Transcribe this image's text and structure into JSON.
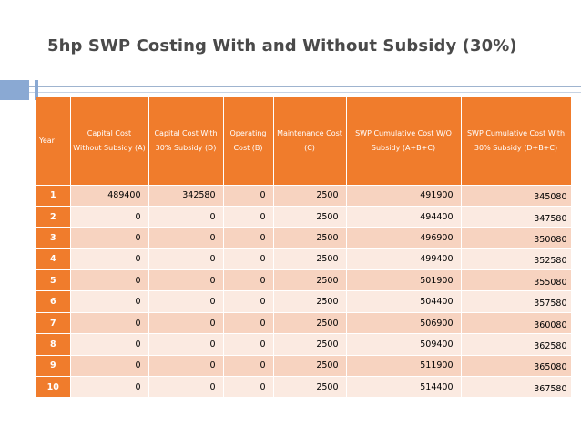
{
  "slide": {
    "title": "5hp SWP Costing With and Without Subsidy (30%)"
  },
  "colors": {
    "header_bg": "#f07c2c",
    "row_odd_bg": "#f7d3c0",
    "row_even_bg": "#fbeae1",
    "accent_blue": "#8aa9d3"
  },
  "table": {
    "headers": [
      "Year",
      "Capital Cost Without Subsidy (A)",
      "Capital Cost With 30% Subsidy (D)",
      "Operating Cost (B)",
      "Maintenance Cost (C)",
      "SWP Cumulative Cost W/O Subsidy (A+B+C)",
      "SWP Cumulative Cost With 30% Subsidy (D+B+C)"
    ],
    "rows": [
      [
        "1",
        "489400",
        "342580",
        "0",
        "2500",
        "491900",
        "345080"
      ],
      [
        "2",
        "0",
        "0",
        "0",
        "2500",
        "494400",
        "347580"
      ],
      [
        "3",
        "0",
        "0",
        "0",
        "2500",
        "496900",
        "350080"
      ],
      [
        "4",
        "0",
        "0",
        "0",
        "2500",
        "499400",
        "352580"
      ],
      [
        "5",
        "0",
        "0",
        "0",
        "2500",
        "501900",
        "355080"
      ],
      [
        "6",
        "0",
        "0",
        "0",
        "2500",
        "504400",
        "357580"
      ],
      [
        "7",
        "0",
        "0",
        "0",
        "2500",
        "506900",
        "360080"
      ],
      [
        "8",
        "0",
        "0",
        "0",
        "2500",
        "509400",
        "362580"
      ],
      [
        "9",
        "0",
        "0",
        "0",
        "2500",
        "511900",
        "365080"
      ],
      [
        "10",
        "0",
        "0",
        "0",
        "2500",
        "514400",
        "367580"
      ]
    ]
  }
}
